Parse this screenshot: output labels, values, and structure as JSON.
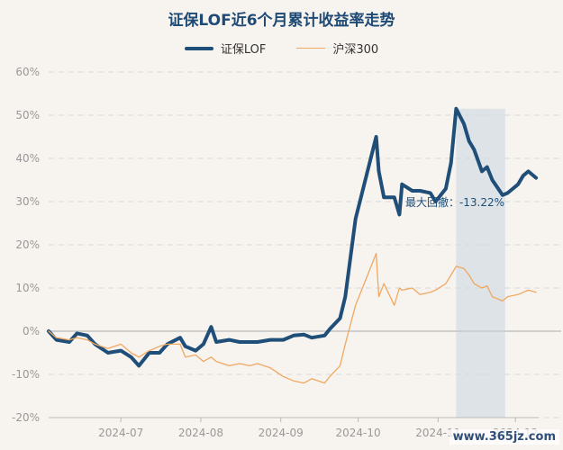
{
  "chart_data": {
    "type": "line",
    "title": "证保LOF近6个月累计收益率走势",
    "xlabel": "",
    "ylabel": "",
    "ylim": [
      -20,
      60
    ],
    "yticks": [
      "60%",
      "50%",
      "40%",
      "30%",
      "20%",
      "10%",
      "0%",
      "-10%",
      "-20%"
    ],
    "xticks": [
      "2024-07",
      "2024-08",
      "2024-09",
      "2024-10",
      "2024-11",
      "2024-12"
    ],
    "legend_position": "top-center",
    "grid": true,
    "annotation": "最大回撤：-13.22%",
    "series": [
      {
        "name": "证保LOF",
        "color": "#1f4e79",
        "points": [
          [
            "2024-06-03",
            0
          ],
          [
            "2024-06-06",
            -2
          ],
          [
            "2024-06-11",
            -2.5
          ],
          [
            "2024-06-14",
            -0.5
          ],
          [
            "2024-06-18",
            -1
          ],
          [
            "2024-06-21",
            -3
          ],
          [
            "2024-06-26",
            -5
          ],
          [
            "2024-07-01",
            -4.5
          ],
          [
            "2024-07-05",
            -6
          ],
          [
            "2024-07-08",
            -8
          ],
          [
            "2024-07-12",
            -5
          ],
          [
            "2024-07-16",
            -5
          ],
          [
            "2024-07-19",
            -3
          ],
          [
            "2024-07-24",
            -1.5
          ],
          [
            "2024-07-26",
            -3.5
          ],
          [
            "2024-07-30",
            -4.5
          ],
          [
            "2024-08-02",
            -3
          ],
          [
            "2024-08-05",
            1
          ],
          [
            "2024-08-07",
            -2.5
          ],
          [
            "2024-08-12",
            -2
          ],
          [
            "2024-08-16",
            -2.5
          ],
          [
            "2024-08-20",
            -2.5
          ],
          [
            "2024-08-23",
            -2.5
          ],
          [
            "2024-08-28",
            -2
          ],
          [
            "2024-09-02",
            -2
          ],
          [
            "2024-09-06",
            -1
          ],
          [
            "2024-09-10",
            -0.8
          ],
          [
            "2024-09-13",
            -1.5
          ],
          [
            "2024-09-18",
            -1
          ],
          [
            "2024-09-20",
            0.5
          ],
          [
            "2024-09-24",
            3
          ],
          [
            "2024-09-26",
            8
          ],
          [
            "2024-09-30",
            26
          ],
          [
            "2024-10-08",
            45
          ],
          [
            "2024-10-09",
            37
          ],
          [
            "2024-10-11",
            31
          ],
          [
            "2024-10-15",
            31
          ],
          [
            "2024-10-17",
            27
          ],
          [
            "2024-10-18",
            34
          ],
          [
            "2024-10-22",
            32.5
          ],
          [
            "2024-10-25",
            32.5
          ],
          [
            "2024-10-29",
            32
          ],
          [
            "2024-10-31",
            30
          ],
          [
            "2024-11-04",
            33
          ],
          [
            "2024-11-06",
            39
          ],
          [
            "2024-11-08",
            51.5
          ],
          [
            "2024-11-11",
            48
          ],
          [
            "2024-11-13",
            44
          ],
          [
            "2024-11-15",
            42
          ],
          [
            "2024-11-18",
            37
          ],
          [
            "2024-11-20",
            38
          ],
          [
            "2024-11-22",
            35
          ],
          [
            "2024-11-26",
            31.5
          ],
          [
            "2024-11-28",
            32
          ],
          [
            "2024-12-02",
            34
          ],
          [
            "2024-12-04",
            36
          ],
          [
            "2024-12-06",
            37
          ],
          [
            "2024-12-09",
            35.5
          ]
        ]
      },
      {
        "name": "沪深300",
        "color": "#f0a862",
        "points": [
          [
            "2024-06-03",
            0
          ],
          [
            "2024-06-06",
            -1.5
          ],
          [
            "2024-06-11",
            -2
          ],
          [
            "2024-06-14",
            -1.5
          ],
          [
            "2024-06-18",
            -2
          ],
          [
            "2024-06-21",
            -3
          ],
          [
            "2024-06-26",
            -4
          ],
          [
            "2024-07-01",
            -3
          ],
          [
            "2024-07-05",
            -5
          ],
          [
            "2024-07-08",
            -6
          ],
          [
            "2024-07-12",
            -4.5
          ],
          [
            "2024-07-16",
            -3.5
          ],
          [
            "2024-07-19",
            -3
          ],
          [
            "2024-07-24",
            -3
          ],
          [
            "2024-07-26",
            -6
          ],
          [
            "2024-07-30",
            -5.5
          ],
          [
            "2024-08-02",
            -7
          ],
          [
            "2024-08-05",
            -6
          ],
          [
            "2024-08-07",
            -7
          ],
          [
            "2024-08-12",
            -8
          ],
          [
            "2024-08-16",
            -7.5
          ],
          [
            "2024-08-20",
            -8
          ],
          [
            "2024-08-23",
            -7.5
          ],
          [
            "2024-08-28",
            -8.5
          ],
          [
            "2024-09-02",
            -10.5
          ],
          [
            "2024-09-06",
            -11.5
          ],
          [
            "2024-09-10",
            -12
          ],
          [
            "2024-09-13",
            -11
          ],
          [
            "2024-09-18",
            -12
          ],
          [
            "2024-09-20",
            -10.5
          ],
          [
            "2024-09-24",
            -8
          ],
          [
            "2024-09-26",
            -3
          ],
          [
            "2024-09-30",
            6
          ],
          [
            "2024-10-08",
            18
          ],
          [
            "2024-10-09",
            8
          ],
          [
            "2024-10-11",
            11
          ],
          [
            "2024-10-15",
            6
          ],
          [
            "2024-10-17",
            10
          ],
          [
            "2024-10-18",
            9.5
          ],
          [
            "2024-10-22",
            10
          ],
          [
            "2024-10-25",
            8.5
          ],
          [
            "2024-10-29",
            9
          ],
          [
            "2024-10-31",
            9.5
          ],
          [
            "2024-11-04",
            11
          ],
          [
            "2024-11-06",
            13
          ],
          [
            "2024-11-08",
            15
          ],
          [
            "2024-11-11",
            14.5
          ],
          [
            "2024-11-13",
            13
          ],
          [
            "2024-11-15",
            11
          ],
          [
            "2024-11-18",
            10
          ],
          [
            "2024-11-20",
            10.5
          ],
          [
            "2024-11-22",
            8
          ],
          [
            "2024-11-26",
            7
          ],
          [
            "2024-11-28",
            8
          ],
          [
            "2024-12-02",
            8.5
          ],
          [
            "2024-12-04",
            9
          ],
          [
            "2024-12-06",
            9.5
          ],
          [
            "2024-12-09",
            9
          ]
        ]
      }
    ],
    "drawdown_period": {
      "start": "2024-11-08",
      "end": "2024-11-27"
    },
    "x_range": [
      "2024-06-03",
      "2024-12-10"
    ]
  },
  "watermark": "www.365jz.com"
}
